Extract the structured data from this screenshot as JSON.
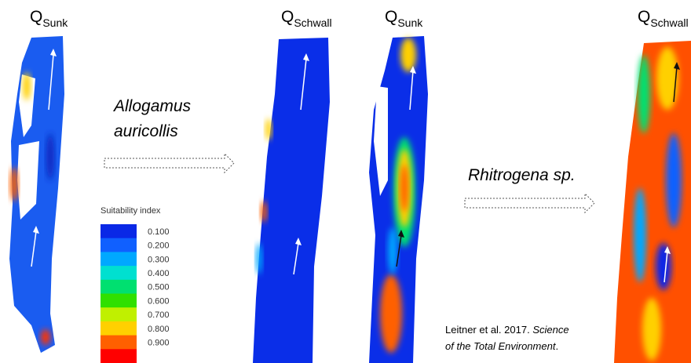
{
  "panels": [
    {
      "symbol": "Q",
      "subscript": "Sunk"
    },
    {
      "symbol": "Q",
      "subscript": "Schwall"
    },
    {
      "symbol": "Q",
      "subscript": "Sunk"
    },
    {
      "symbol": "Q",
      "subscript": "Schwall"
    }
  ],
  "species": [
    {
      "lines": [
        "Allogamus",
        "auricollis"
      ]
    },
    {
      "lines": [
        "Rhitrogena sp."
      ]
    }
  ],
  "legend": {
    "title": "Suitability index",
    "labels": [
      "0.100",
      "0.200",
      "0.300",
      "0.400",
      "0.500",
      "0.600",
      "0.700",
      "0.800",
      "0.900"
    ],
    "colors": [
      "#0a28e6",
      "#1060ff",
      "#00a8ff",
      "#00e0d0",
      "#00e070",
      "#30e000",
      "#c0f000",
      "#ffd000",
      "#ff6000",
      "#ff0000"
    ]
  },
  "citation": {
    "authors": "Leitner et al. 2017. ",
    "journal_line1": "Science",
    "journal_line2": "of the Total Environment",
    "end": "."
  }
}
